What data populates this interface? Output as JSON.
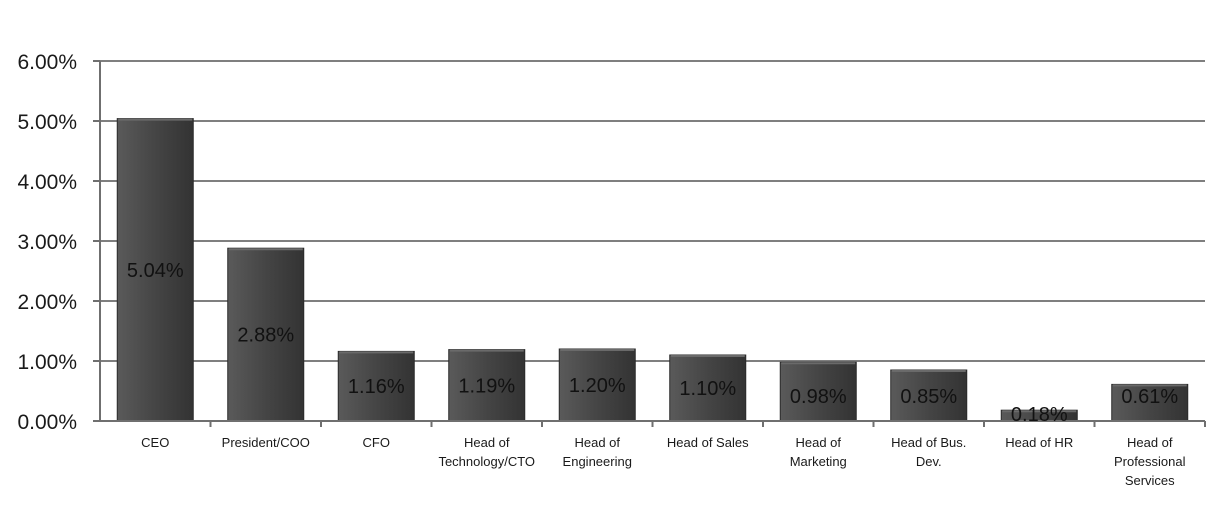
{
  "chart_data": {
    "type": "bar",
    "title": "",
    "xlabel": "",
    "ylabel": "",
    "categories": [
      [
        "CEO"
      ],
      [
        "President/COO"
      ],
      [
        "CFO"
      ],
      [
        "Head of",
        "Technology/CTO"
      ],
      [
        "Head of",
        "Engineering"
      ],
      [
        "Head of Sales"
      ],
      [
        "Head of",
        "Marketing"
      ],
      [
        "Head of Bus.",
        "Dev."
      ],
      [
        "Head of HR"
      ],
      [
        "Head of",
        "Professional",
        "Services"
      ]
    ],
    "values": [
      5.04,
      2.88,
      1.16,
      1.19,
      1.2,
      1.1,
      0.98,
      0.85,
      0.18,
      0.61
    ],
    "data_labels": [
      "5.04%",
      "2.88%",
      "1.16%",
      "1.19%",
      "1.20%",
      "1.10%",
      "0.98%",
      "0.85%",
      "0.18%",
      "0.61%"
    ],
    "ylim": [
      0,
      6
    ],
    "yticks": [
      0,
      1,
      2,
      3,
      4,
      5,
      6
    ],
    "ytick_labels": [
      "0.00%",
      "1.00%",
      "2.00%",
      "3.00%",
      "4.00%",
      "5.00%",
      "6.00%"
    ],
    "grid": true,
    "legend": "none",
    "colors": {
      "bar": "#454545",
      "bar_highlight": "#6a6a6a",
      "gridline": "#7f7f7f"
    }
  }
}
